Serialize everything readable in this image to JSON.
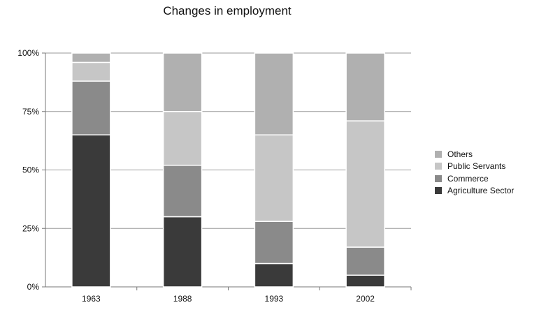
{
  "chart_data": {
    "type": "bar",
    "stacked": true,
    "title": "Changes in employment",
    "xlabel": "",
    "ylabel": "",
    "categories": [
      "1963",
      "1988",
      "1993",
      "2002"
    ],
    "ylim": [
      0,
      100
    ],
    "yticks": [
      0,
      25,
      50,
      75,
      100
    ],
    "ytick_labels": [
      "0%",
      "25%",
      "50%",
      "75%",
      "100%"
    ],
    "grid": "horizontal",
    "legend_position": "right",
    "series": [
      {
        "name": "Agriculture Sector",
        "color": "#3a3a3a",
        "values": [
          65,
          30,
          10,
          5
        ]
      },
      {
        "name": "Commerce",
        "color": "#8a8a8a",
        "values": [
          23,
          22,
          18,
          12
        ]
      },
      {
        "name": "Public Servants",
        "color": "#c6c6c6",
        "values": [
          8,
          23,
          37,
          54
        ]
      },
      {
        "name": "Others",
        "color": "#b0b0b0",
        "values": [
          4,
          25,
          35,
          29
        ]
      }
    ],
    "legend_order": [
      "Others",
      "Public Servants",
      "Commerce",
      "Agriculture Sector"
    ]
  }
}
